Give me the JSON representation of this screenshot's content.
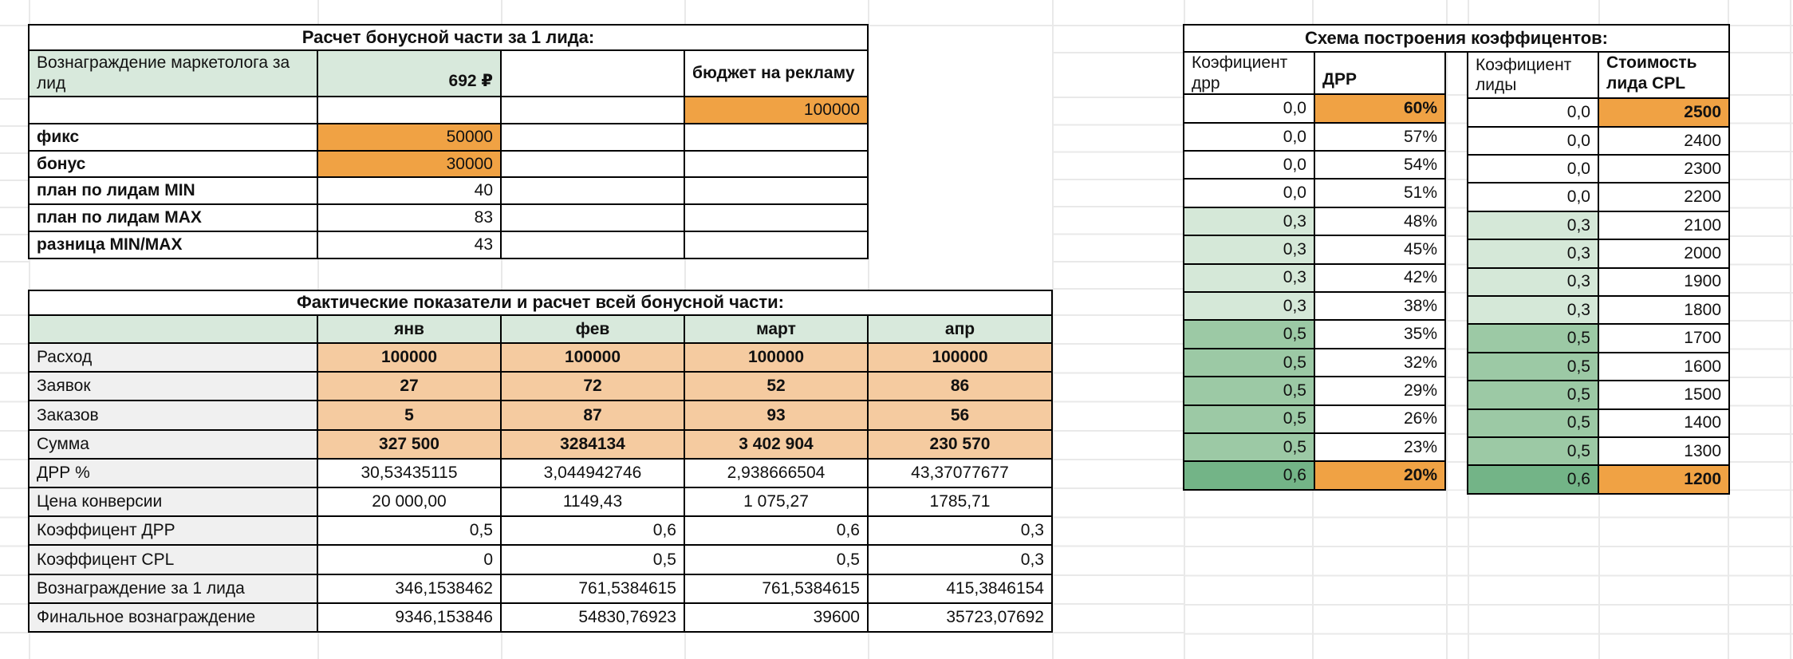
{
  "colors": {
    "accent_orange": "#f0a244",
    "light_orange": "#f5cba0",
    "header_green": "#d8e9dc",
    "light_green": "#d5e8d8",
    "medium_green": "#9cc9a5",
    "dark_green": "#73b487",
    "label_gray": "#f0f0f0",
    "grid_border": "#000000",
    "sheet_gridline": "#e9e9e9"
  },
  "top": {
    "title": "Расчет бонусной части за 1 лида:",
    "rows": [
      [
        {
          "t": "Вознаграждение маркетолога за лид",
          "s": "g w"
        },
        {
          "t": "692 ₽",
          "s": "g b r vb"
        },
        {
          "t": "",
          "s": ""
        },
        {
          "t": "бюджет на рекламу",
          "s": "b w"
        }
      ],
      [
        {
          "t": "",
          "s": ""
        },
        {
          "t": "",
          "s": ""
        },
        {
          "t": "",
          "s": ""
        },
        {
          "t": "100000",
          "s": "o r"
        }
      ],
      [
        {
          "t": "фикс",
          "s": "b"
        },
        {
          "t": "50000",
          "s": "o r"
        },
        {
          "t": "",
          "s": ""
        },
        {
          "t": "",
          "s": ""
        }
      ],
      [
        {
          "t": "бонус",
          "s": "b"
        },
        {
          "t": "30000",
          "s": "o r"
        },
        {
          "t": "",
          "s": ""
        },
        {
          "t": "",
          "s": ""
        }
      ],
      [
        {
          "t": "план по лидам MIN",
          "s": "b"
        },
        {
          "t": "40",
          "s": "r"
        },
        {
          "t": "",
          "s": ""
        },
        {
          "t": "",
          "s": ""
        }
      ],
      [
        {
          "t": "план по лидам MAX",
          "s": "b"
        },
        {
          "t": "83",
          "s": "r"
        },
        {
          "t": "",
          "s": ""
        },
        {
          "t": "",
          "s": ""
        }
      ],
      [
        {
          "t": "разница MIN/MAX",
          "s": "b"
        },
        {
          "t": "43",
          "s": "r"
        },
        {
          "t": "",
          "s": ""
        },
        {
          "t": "",
          "s": ""
        }
      ]
    ]
  },
  "bottom": {
    "title": "Фактические показатели и расчет всей бонусной части:",
    "rows": [
      [
        {
          "t": "",
          "s": "g"
        },
        {
          "t": "янв",
          "s": "g b c"
        },
        {
          "t": "фев",
          "s": "g b c"
        },
        {
          "t": "март",
          "s": "g b c"
        },
        {
          "t": "апр",
          "s": "g b c"
        }
      ],
      [
        {
          "t": "Расход",
          "s": "gy"
        },
        {
          "t": "100000",
          "s": "lo b c"
        },
        {
          "t": "100000",
          "s": "lo b c"
        },
        {
          "t": "100000",
          "s": "lo b c"
        },
        {
          "t": "100000",
          "s": "lo b c"
        }
      ],
      [
        {
          "t": "Заявок",
          "s": "gy"
        },
        {
          "t": "27",
          "s": "lo b c"
        },
        {
          "t": "72",
          "s": "lo b c"
        },
        {
          "t": "52",
          "s": "lo b c"
        },
        {
          "t": "86",
          "s": "lo b c"
        }
      ],
      [
        {
          "t": "Заказов",
          "s": "gy"
        },
        {
          "t": "5",
          "s": "lo b c"
        },
        {
          "t": "87",
          "s": "lo b c"
        },
        {
          "t": "93",
          "s": "lo b c"
        },
        {
          "t": "56",
          "s": "lo b c"
        }
      ],
      [
        {
          "t": "Сумма",
          "s": "gy"
        },
        {
          "t": "327 500",
          "s": "lo b c"
        },
        {
          "t": "3284134",
          "s": "lo b c"
        },
        {
          "t": "3 402 904",
          "s": "lo b c"
        },
        {
          "t": "230 570",
          "s": "lo b c"
        }
      ],
      [
        {
          "t": "ДРР %",
          "s": "gy"
        },
        {
          "t": "30,53435115",
          "s": "c"
        },
        {
          "t": "3,044942746",
          "s": "c"
        },
        {
          "t": "2,938666504",
          "s": "c"
        },
        {
          "t": "43,37077677",
          "s": "c"
        }
      ],
      [
        {
          "t": "Цена конверсии",
          "s": "gy"
        },
        {
          "t": "20 000,00",
          "s": "c"
        },
        {
          "t": "1149,43",
          "s": "c"
        },
        {
          "t": "1 075,27",
          "s": "c"
        },
        {
          "t": "1785,71",
          "s": "c"
        }
      ],
      [
        {
          "t": "Коэффицент ДРР",
          "s": "gy"
        },
        {
          "t": "0,5",
          "s": "r"
        },
        {
          "t": "0,6",
          "s": "r"
        },
        {
          "t": "0,6",
          "s": "r"
        },
        {
          "t": "0,3",
          "s": "r"
        }
      ],
      [
        {
          "t": "Коэффицент CPL",
          "s": "gy"
        },
        {
          "t": "0",
          "s": "r"
        },
        {
          "t": "0,5",
          "s": "r"
        },
        {
          "t": "0,5",
          "s": "r"
        },
        {
          "t": "0,3",
          "s": "r"
        }
      ],
      [
        {
          "t": "Вознаграждение за 1 лида",
          "s": "gy"
        },
        {
          "t": "346,1538462",
          "s": "r"
        },
        {
          "t": "761,5384615",
          "s": "r"
        },
        {
          "t": "761,5384615",
          "s": "r"
        },
        {
          "t": "415,3846154",
          "s": "r"
        }
      ],
      [
        {
          "t": "Финальное вознаграждение",
          "s": "gy"
        },
        {
          "t": "9346,153846",
          "s": "r"
        },
        {
          "t": "54830,76923",
          "s": "r"
        },
        {
          "t": "39600",
          "s": "r"
        },
        {
          "t": "35723,07692",
          "s": "r"
        }
      ]
    ]
  },
  "scheme": {
    "title": "Схема построения коэффицентов:",
    "left": {
      "rows": [
        [
          {
            "t": "Коэфициент дрр",
            "s": "w"
          },
          {
            "t": "ДРР",
            "s": "b vb"
          }
        ],
        [
          {
            "t": "0,0",
            "s": "r"
          },
          {
            "t": "60%",
            "s": "o b r"
          }
        ],
        [
          {
            "t": "0,0",
            "s": "r"
          },
          {
            "t": "57%",
            "s": "r"
          }
        ],
        [
          {
            "t": "0,0",
            "s": "r"
          },
          {
            "t": "54%",
            "s": "r"
          }
        ],
        [
          {
            "t": "0,0",
            "s": "r"
          },
          {
            "t": "51%",
            "s": "r"
          }
        ],
        [
          {
            "t": "0,3",
            "s": "g3 r"
          },
          {
            "t": "48%",
            "s": "r"
          }
        ],
        [
          {
            "t": "0,3",
            "s": "g3 r"
          },
          {
            "t": "45%",
            "s": "r"
          }
        ],
        [
          {
            "t": "0,3",
            "s": "g3 r"
          },
          {
            "t": "42%",
            "s": "r"
          }
        ],
        [
          {
            "t": "0,3",
            "s": "g3 r"
          },
          {
            "t": "38%",
            "s": "r"
          }
        ],
        [
          {
            "t": "0,5",
            "s": "g5 r"
          },
          {
            "t": "35%",
            "s": "r"
          }
        ],
        [
          {
            "t": "0,5",
            "s": "g5 r"
          },
          {
            "t": "32%",
            "s": "r"
          }
        ],
        [
          {
            "t": "0,5",
            "s": "g5 r"
          },
          {
            "t": "29%",
            "s": "r"
          }
        ],
        [
          {
            "t": "0,5",
            "s": "g5 r"
          },
          {
            "t": "26%",
            "s": "r"
          }
        ],
        [
          {
            "t": "0,5",
            "s": "g5 r"
          },
          {
            "t": "23%",
            "s": "r"
          }
        ],
        [
          {
            "t": "0,6",
            "s": "g6 r"
          },
          {
            "t": "20%",
            "s": "o b r"
          }
        ]
      ]
    },
    "right": {
      "rows": [
        [
          {
            "t": "Коэфициент лиды",
            "s": "w"
          },
          {
            "t": "Стоимость лида CPL",
            "s": "b w vb"
          }
        ],
        [
          {
            "t": "0,0",
            "s": "r"
          },
          {
            "t": "2500",
            "s": "o b r"
          }
        ],
        [
          {
            "t": "0,0",
            "s": "r"
          },
          {
            "t": "2400",
            "s": "r"
          }
        ],
        [
          {
            "t": "0,0",
            "s": "r"
          },
          {
            "t": "2300",
            "s": "r"
          }
        ],
        [
          {
            "t": "0,0",
            "s": "r"
          },
          {
            "t": "2200",
            "s": "r"
          }
        ],
        [
          {
            "t": "0,3",
            "s": "g3 r"
          },
          {
            "t": "2100",
            "s": "r"
          }
        ],
        [
          {
            "t": "0,3",
            "s": "g3 r"
          },
          {
            "t": "2000",
            "s": "r"
          }
        ],
        [
          {
            "t": "0,3",
            "s": "g3 r"
          },
          {
            "t": "1900",
            "s": "r"
          }
        ],
        [
          {
            "t": "0,3",
            "s": "g3 r"
          },
          {
            "t": "1800",
            "s": "r"
          }
        ],
        [
          {
            "t": "0,5",
            "s": "g5 r"
          },
          {
            "t": "1700",
            "s": "r"
          }
        ],
        [
          {
            "t": "0,5",
            "s": "g5 r"
          },
          {
            "t": "1600",
            "s": "r"
          }
        ],
        [
          {
            "t": "0,5",
            "s": "g5 r"
          },
          {
            "t": "1500",
            "s": "r"
          }
        ],
        [
          {
            "t": "0,5",
            "s": "g5 r"
          },
          {
            "t": "1400",
            "s": "r"
          }
        ],
        [
          {
            "t": "0,5",
            "s": "g5 r"
          },
          {
            "t": "1300",
            "s": "r"
          }
        ],
        [
          {
            "t": "0,6",
            "s": "g6 r"
          },
          {
            "t": "1200",
            "s": "o b r"
          }
        ]
      ]
    }
  }
}
